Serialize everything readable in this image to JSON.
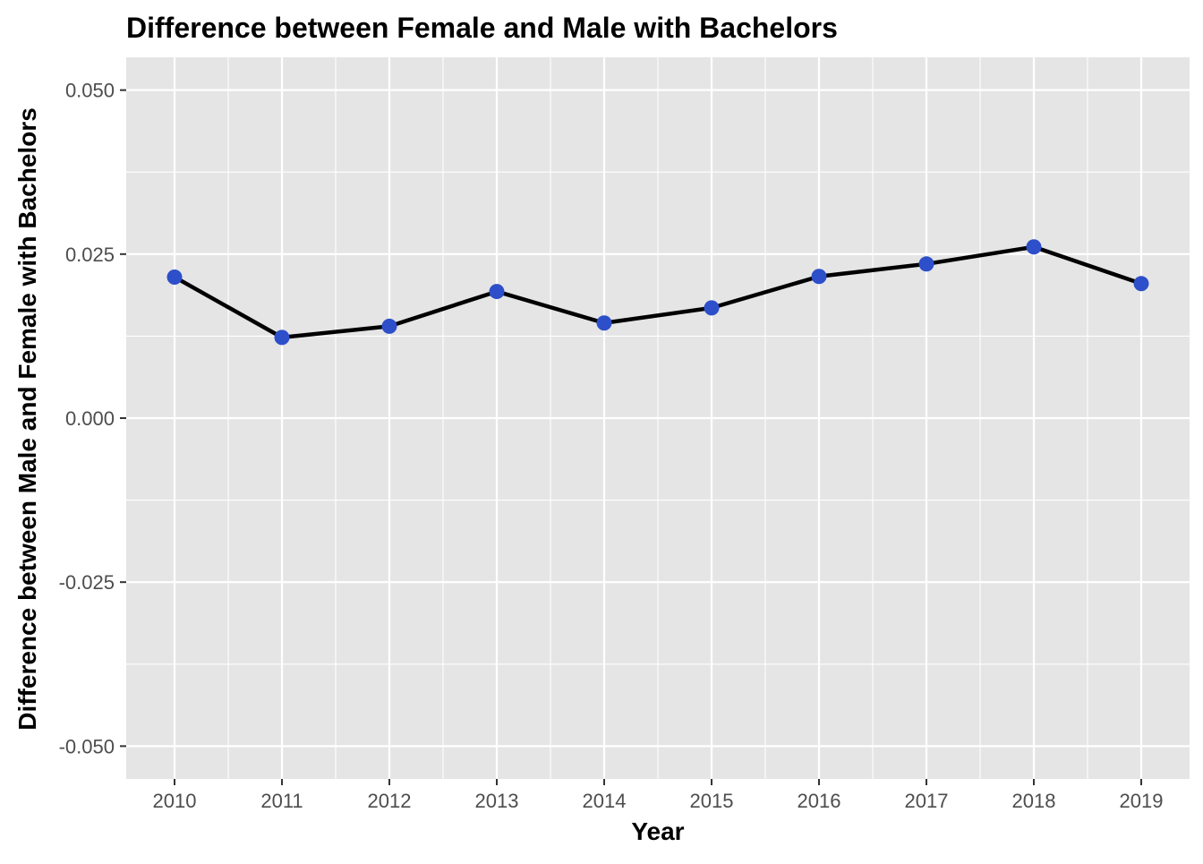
{
  "chart_data": {
    "type": "line",
    "title": "Difference between Female and Male with Bachelors",
    "xlabel": "Year",
    "ylabel": "Difference between Male and Female with Bachelors",
    "x": [
      2010,
      2011,
      2012,
      2013,
      2014,
      2015,
      2016,
      2017,
      2018,
      2019
    ],
    "series": [
      {
        "values": [
          0.0215,
          0.0123,
          0.014,
          0.0193,
          0.0145,
          0.0168,
          0.0216,
          0.0235,
          0.0261,
          0.0205
        ]
      }
    ],
    "xticks": [
      "2010",
      "2011",
      "2012",
      "2013",
      "2014",
      "2015",
      "2016",
      "2017",
      "2018",
      "2019"
    ],
    "yticks": [
      {
        "value": -0.05,
        "label": "-0.050"
      },
      {
        "value": -0.025,
        "label": "-0.025"
      },
      {
        "value": 0,
        "label": "0.000"
      },
      {
        "value": 0.025,
        "label": "0.025"
      },
      {
        "value": 0.05,
        "label": "0.050"
      }
    ],
    "xlim": [
      2009.55,
      2019.45
    ],
    "ylim": [
      -0.055,
      0.055
    ],
    "grid": true,
    "colors": {
      "panel_background": "#e5e5e5",
      "grid_major": "#ffffff",
      "line": "#000000",
      "points": "#2d4fc9"
    }
  }
}
